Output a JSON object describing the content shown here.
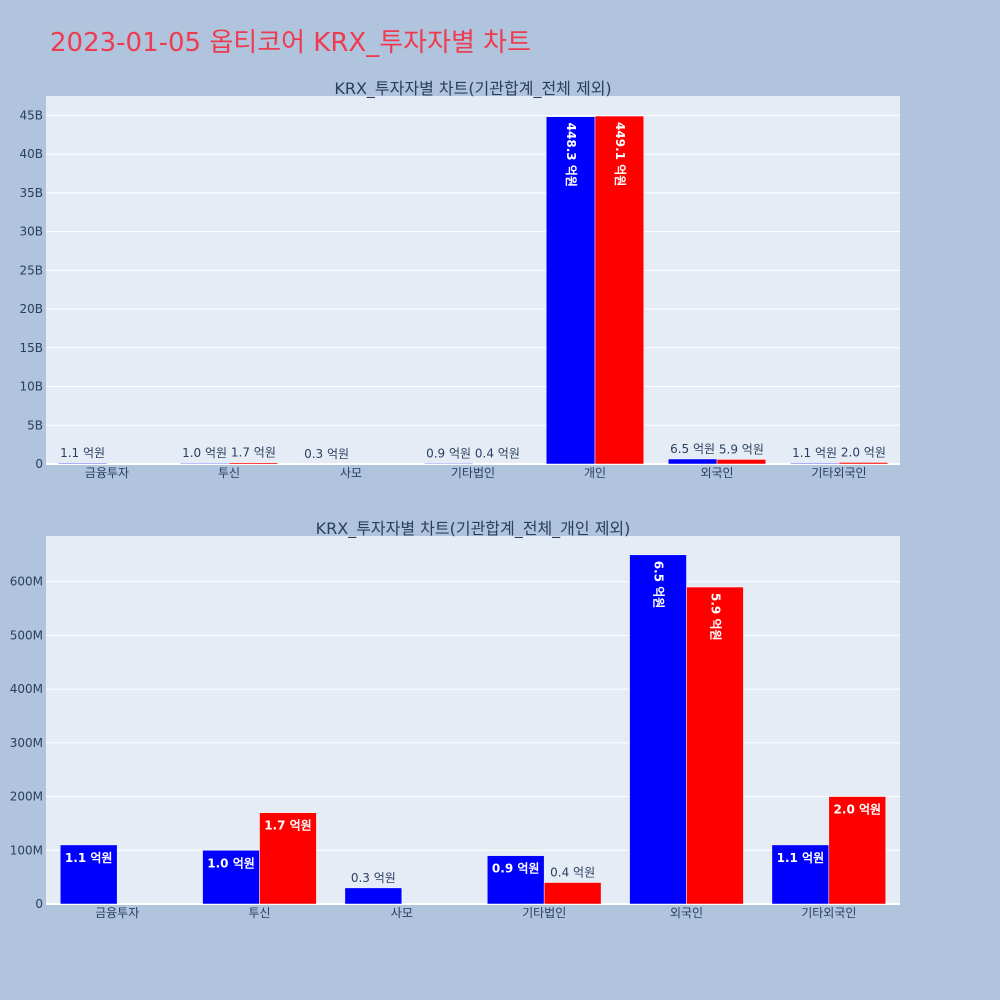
{
  "title": "2023-01-05 옵티코어 KRX_투자자별 차트",
  "colors": {
    "buy": "#0000ff",
    "sell": "#ff0000",
    "background": "#b0c4de",
    "plot_bg": "#e5ecf6",
    "title": "#ef3b4f"
  },
  "chart_data": [
    {
      "type": "bar",
      "title": "KRX_투자자별 차트(기관합계_전체 제외)",
      "categories": [
        "금융투자",
        "투신",
        "사모",
        "기타법인",
        "개인",
        "외국인",
        "기타외국인"
      ],
      "series": [
        {
          "color": "#0000ff",
          "values": [
            110000000,
            100000000,
            30000000,
            90000000,
            44830000000,
            650000000,
            110000000
          ],
          "labels": [
            "1.1 억원",
            "1.0 억원",
            "0.3 억원",
            "0.9 억원",
            "448.3 억원",
            "6.5 억원",
            "1.1 억원"
          ]
        },
        {
          "color": "#ff0000",
          "values": [
            0,
            170000000,
            0,
            40000000,
            44910000000,
            590000000,
            200000000
          ],
          "labels": [
            "",
            "1.7 억원",
            "",
            "0.4 억원",
            "449.1 억원",
            "5.9 억원",
            "2.0 억원"
          ]
        }
      ],
      "yticks": [
        0,
        5000000000,
        10000000000,
        15000000000,
        20000000000,
        25000000000,
        30000000000,
        35000000000,
        40000000000,
        45000000000
      ],
      "yticklabels": [
        "0",
        "5B",
        "10B",
        "15B",
        "20B",
        "25B",
        "30B",
        "35B",
        "40B",
        "45B"
      ],
      "ylim": [
        0,
        47500000000
      ],
      "grid": true
    },
    {
      "type": "bar",
      "title": "KRX_투자자별 차트(기관합계_전체_개인 제외)",
      "categories": [
        "금융투자",
        "투신",
        "사모",
        "기타법인",
        "외국인",
        "기타외국인"
      ],
      "series": [
        {
          "color": "#0000ff",
          "values": [
            110000000,
            100000000,
            30000000,
            90000000,
            650000000,
            110000000
          ],
          "labels": [
            "1.1 억원",
            "1.0 억원",
            "0.3 억원",
            "0.9 억원",
            "6.5 억원",
            "1.1 억원"
          ]
        },
        {
          "color": "#ff0000",
          "values": [
            0,
            170000000,
            0,
            40000000,
            590000000,
            200000000
          ],
          "labels": [
            "",
            "1.7 억원",
            "",
            "0.4 억원",
            "5.9 억원",
            "2.0 억원"
          ]
        }
      ],
      "yticks": [
        0,
        100000000,
        200000000,
        300000000,
        400000000,
        500000000,
        600000000
      ],
      "yticklabels": [
        "0",
        "100M",
        "200M",
        "300M",
        "400M",
        "500M",
        "600M"
      ],
      "ylim": [
        0,
        685000000
      ],
      "grid": true
    }
  ]
}
